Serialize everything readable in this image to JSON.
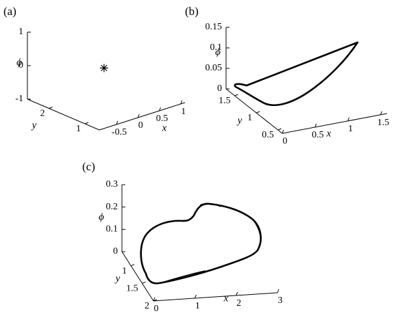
{
  "chart_data": [
    {
      "type": "scatter3d",
      "title": "(a)",
      "xlabel": "x",
      "ylabel": "y",
      "zlabel": "ϕ",
      "xlim": [
        -0.9,
        1.1
      ],
      "ylim": [
        0.6,
        2.6
      ],
      "zlim": [
        -1,
        1
      ],
      "xticks": [
        -0.5,
        0,
        0.5,
        1
      ],
      "yticks": [
        1,
        2
      ],
      "zticks": [
        -1,
        0,
        1
      ],
      "series": [
        {
          "marker": "*",
          "color": "#000000",
          "x": [
            0.05
          ],
          "y": [
            1.6
          ],
          "z": [
            0
          ]
        }
      ]
    },
    {
      "type": "line3d",
      "title": "(b)",
      "xlabel": "x",
      "ylabel": "y",
      "zlabel": "ϕ",
      "xlim": [
        0,
        1.6
      ],
      "ylim": [
        0.4,
        1.7
      ],
      "zlim": [
        0,
        0.15
      ],
      "xticks": [
        0,
        0.5,
        1,
        1.5
      ],
      "yticks": [
        0.5,
        1,
        1.5
      ],
      "zticks": [
        0,
        0.05,
        0.1,
        0.15
      ]
    },
    {
      "type": "line3d",
      "title": "(c)",
      "xlabel": "x",
      "ylabel": "y",
      "zlabel": "ϕ",
      "xlim": [
        0,
        3
      ],
      "ylim": [
        0.6,
        2
      ],
      "zlim": [
        0,
        0.3
      ],
      "xticks": [
        0,
        1,
        2,
        3
      ],
      "yticks": [
        1,
        1.5,
        2
      ],
      "zticks": [
        0,
        0.1,
        0.2,
        0.3
      ]
    }
  ]
}
